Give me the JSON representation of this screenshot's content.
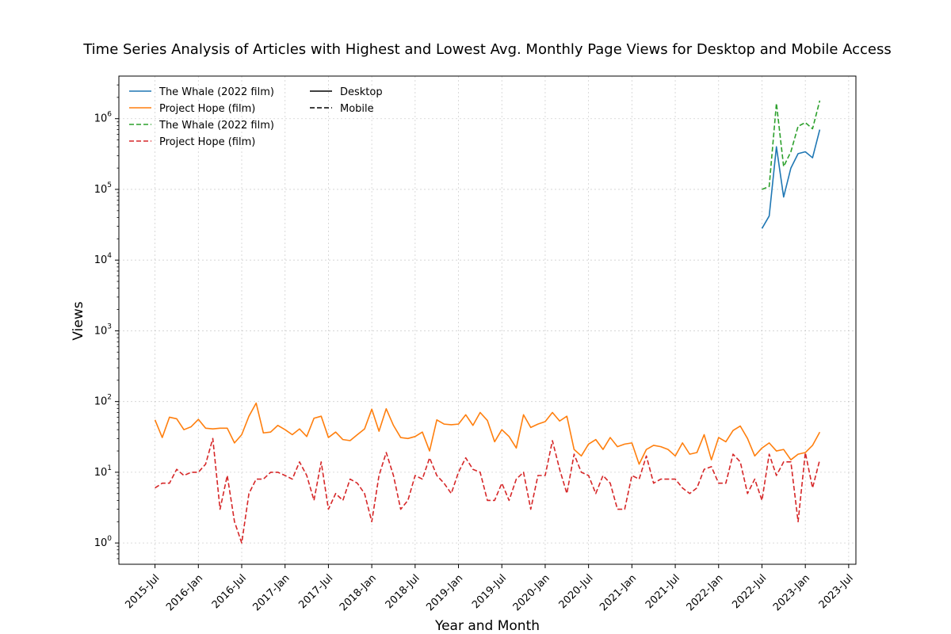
{
  "chart_data": {
    "type": "line",
    "title": "Time Series Analysis of Articles with Highest and Lowest Avg. Monthly Page Views for Desktop and Mobile Access",
    "xlabel": "Year and Month",
    "ylabel": "Views",
    "yscale": "log",
    "ylim": [
      0.5,
      4000000
    ],
    "xlim": [
      "2015-02",
      "2023-08"
    ],
    "grid": true,
    "legend_placement": "top-left",
    "x_ticks": [
      "2015-Jul",
      "2016-Jan",
      "2016-Jul",
      "2017-Jan",
      "2017-Jul",
      "2018-Jan",
      "2018-Jul",
      "2019-Jan",
      "2019-Jul",
      "2020-Jan",
      "2020-Jul",
      "2021-Jan",
      "2021-Jul",
      "2022-Jan",
      "2022-Jul",
      "2023-Jan",
      "2023-Jul"
    ],
    "y_ticks": [
      {
        "value": 1,
        "base": "10",
        "exp": "0"
      },
      {
        "value": 10,
        "base": "10",
        "exp": "1"
      },
      {
        "value": 100,
        "base": "10",
        "exp": "2"
      },
      {
        "value": 1000,
        "base": "10",
        "exp": "3"
      },
      {
        "value": 10000,
        "base": "10",
        "exp": "4"
      },
      {
        "value": 100000,
        "base": "10",
        "exp": "5"
      },
      {
        "value": 1000000,
        "base": "10",
        "exp": "6"
      }
    ],
    "style_legend": [
      {
        "name": "Desktop",
        "dash": "solid"
      },
      {
        "name": "Mobile",
        "dash": "dashed"
      }
    ],
    "series": [
      {
        "name": "The Whale (2022 film)",
        "access": "Desktop",
        "color": "#1f77b4",
        "dash": "solid",
        "start": "2022-07",
        "values": [
          28000,
          42000,
          400000,
          78000,
          200000,
          320000,
          340000,
          280000,
          700000
        ]
      },
      {
        "name": "Project Hope (film)",
        "access": "Desktop",
        "color": "#ff7f0e",
        "dash": "solid",
        "start": "2015-07",
        "values": [
          55,
          31,
          60,
          57,
          40,
          44,
          56,
          42,
          41,
          42,
          42,
          26,
          34,
          62,
          95,
          36,
          37,
          46,
          40,
          34,
          41,
          32,
          58,
          62,
          31,
          37,
          29,
          28,
          34,
          41,
          78,
          38,
          79,
          46,
          31,
          30,
          32,
          37,
          20,
          55,
          48,
          47,
          48,
          65,
          46,
          70,
          54,
          27,
          40,
          32,
          22,
          65,
          43,
          48,
          52,
          70,
          53,
          62,
          21,
          17,
          25,
          29,
          21,
          31,
          23,
          25,
          26,
          13,
          21,
          24,
          23,
          21,
          17,
          26,
          18,
          19,
          34,
          15,
          31,
          27,
          39,
          45,
          30,
          17,
          22,
          26,
          20,
          21,
          15,
          18,
          19,
          24,
          37
        ]
      },
      {
        "name": "The Whale (2022 film)",
        "access": "Mobile",
        "color": "#2ca02c",
        "dash": "dashed",
        "start": "2022-07",
        "values": [
          100000,
          110000,
          1650000,
          210000,
          340000,
          780000,
          880000,
          720000,
          1800000
        ]
      },
      {
        "name": "Project Hope (film)",
        "access": "Mobile",
        "color": "#d62728",
        "dash": "dashed",
        "start": "2015-07",
        "values": [
          6,
          7,
          7,
          11,
          9,
          10,
          10,
          13,
          30,
          3,
          9,
          2,
          1,
          5,
          8,
          8,
          10,
          10,
          9,
          8,
          14,
          9,
          4,
          14,
          3,
          5,
          4,
          8,
          7,
          5,
          2,
          9,
          19,
          9,
          3,
          4,
          9,
          8,
          16,
          9,
          7,
          5,
          10,
          16,
          11,
          10,
          4,
          4,
          7,
          4,
          8,
          10,
          3,
          9,
          9,
          28,
          11,
          5,
          18,
          10,
          9,
          5,
          9,
          7,
          3,
          3,
          9,
          8,
          17,
          7,
          8,
          8,
          8,
          6,
          5,
          6,
          11,
          12,
          7,
          7,
          18,
          14,
          5,
          8,
          4,
          18,
          9,
          14,
          14,
          2,
          19,
          6,
          15
        ]
      }
    ]
  }
}
